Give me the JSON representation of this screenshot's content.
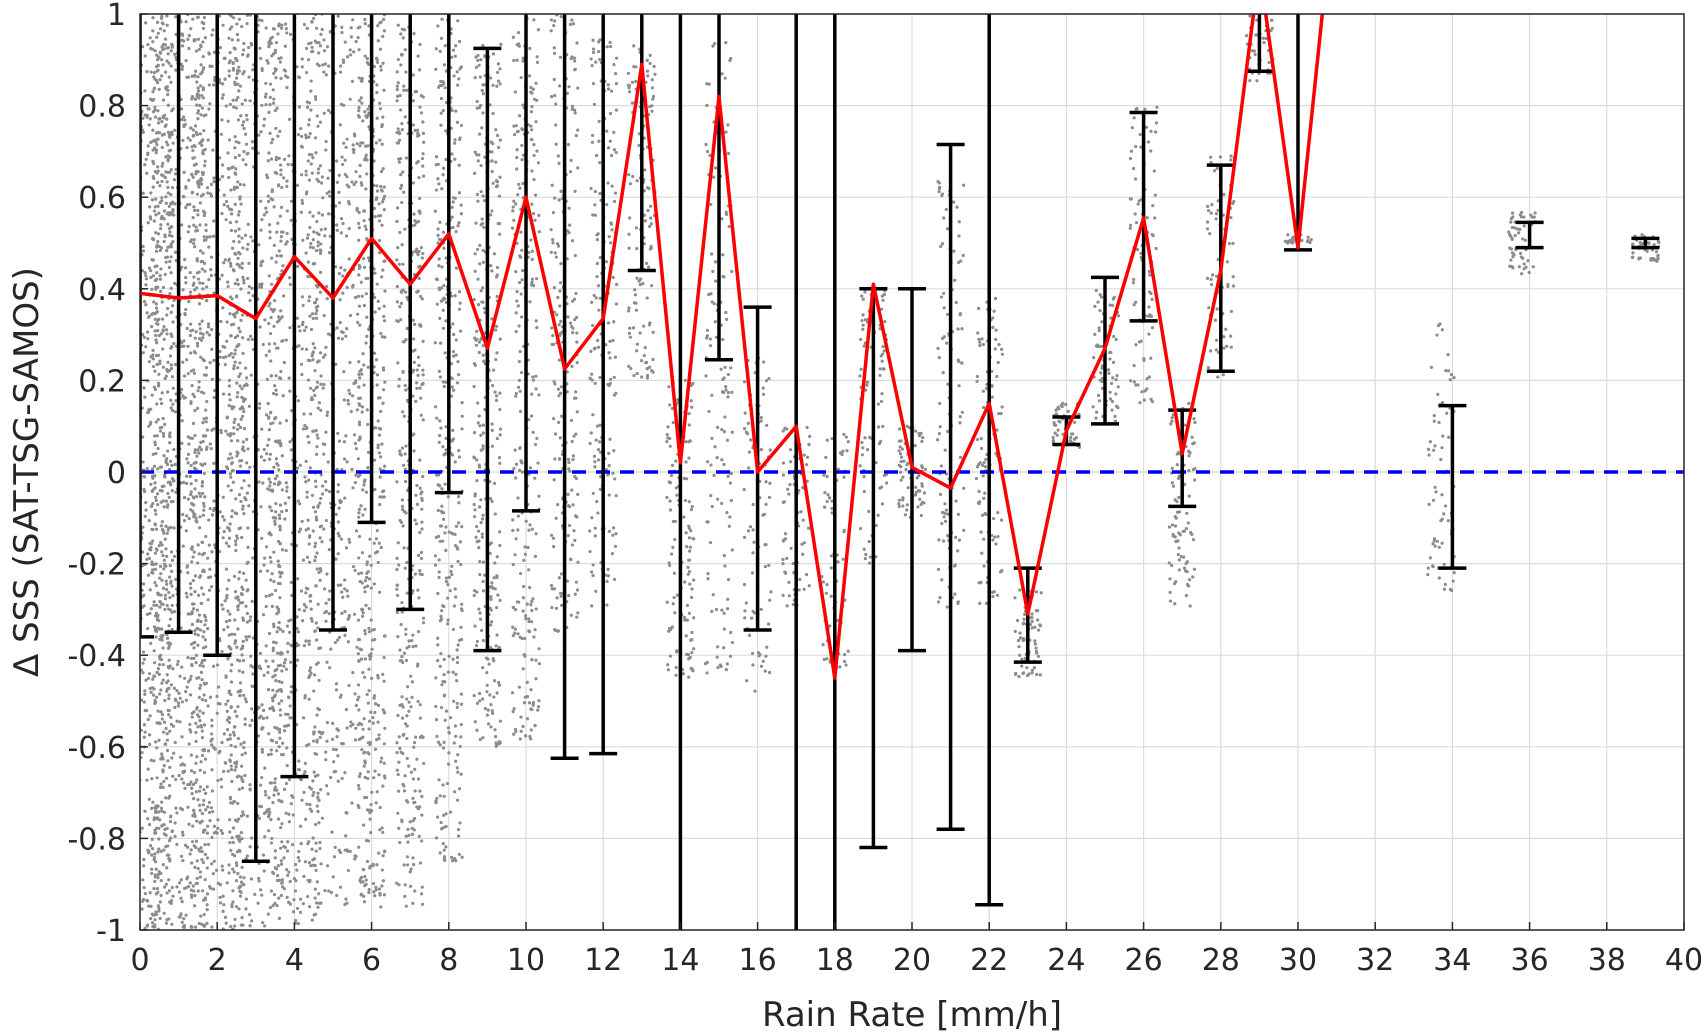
{
  "chart_data": {
    "type": "scatter",
    "title": "",
    "xlabel": "Rain Rate [mm/h]",
    "ylabel": "Δ SSS (SAT-TSG-SAMOS)",
    "xlim": [
      0,
      40
    ],
    "ylim": [
      -1,
      1
    ],
    "xticks": [
      0,
      2,
      4,
      6,
      8,
      10,
      12,
      14,
      16,
      18,
      20,
      22,
      24,
      26,
      28,
      30,
      32,
      34,
      36,
      38,
      40
    ],
    "yticks": [
      -1,
      -0.8,
      -0.6,
      -0.4,
      -0.2,
      0,
      0.2,
      0.4,
      0.6,
      0.8,
      1
    ],
    "ytick_labels": [
      "-1",
      "-0.8",
      "-0.6",
      "-0.4",
      "-0.2",
      "0",
      "0.2",
      "0.4",
      "0.6",
      "0.8",
      "1"
    ],
    "grid": true,
    "colors": {
      "scatter": "#8c8c8c",
      "mean_line": "#ff0000",
      "error_bars": "#000000",
      "zero_line": "#0000ee"
    },
    "series": [
      {
        "kind": "mean-line",
        "x": [
          0,
          1,
          2,
          3,
          4,
          5,
          6,
          7,
          8,
          9,
          10,
          11,
          12,
          13,
          14,
          15,
          16,
          17,
          18,
          19,
          20,
          21,
          22,
          23,
          24,
          25,
          26,
          27,
          28,
          29,
          30,
          31
        ],
        "y": [
          0.39,
          0.38,
          0.385,
          0.335,
          0.47,
          0.38,
          0.51,
          0.41,
          0.52,
          0.27,
          0.6,
          0.225,
          0.335,
          0.89,
          0.02,
          0.82,
          0.0,
          0.1,
          -0.45,
          0.41,
          0.01,
          -0.035,
          0.15,
          -0.31,
          0.09,
          0.27,
          0.555,
          0.04,
          0.44,
          1.1,
          0.49,
          1.3
        ]
      },
      {
        "kind": "error-bars",
        "x": [
          0,
          1,
          2,
          3,
          4,
          5,
          6,
          7,
          8,
          9,
          10,
          11,
          12,
          13,
          14,
          15,
          16,
          17,
          18,
          19,
          20,
          21,
          22,
          23,
          24,
          25,
          26,
          27,
          28,
          29,
          30,
          34,
          36,
          39
        ],
        "lower": [
          -0.36,
          -0.35,
          -0.4,
          -0.85,
          -0.665,
          -0.345,
          -0.11,
          -0.3,
          -0.045,
          -0.39,
          -0.085,
          -0.625,
          -0.615,
          0.44,
          -1.3,
          0.245,
          -0.345,
          -1.3,
          -1.3,
          -0.82,
          -0.39,
          -0.78,
          -0.945,
          -0.415,
          0.06,
          0.105,
          0.33,
          -0.075,
          0.22,
          0.875,
          0.485,
          -0.21,
          0.49,
          0.49
        ],
        "upper": [
          1.3,
          1.3,
          1.3,
          1.3,
          1.3,
          1.3,
          1.3,
          1.3,
          1.3,
          0.925,
          1.3,
          1.3,
          1.3,
          1.3,
          1.3,
          1.3,
          0.36,
          1.3,
          1.3,
          0.4,
          0.4,
          0.715,
          1.3,
          -0.21,
          0.12,
          0.425,
          0.785,
          0.135,
          0.67,
          1.3,
          1.3,
          0.145,
          0.545,
          0.51
        ]
      },
      {
        "kind": "zero-line",
        "y": 0
      }
    ],
    "scatter_columns": [
      {
        "x": 0.15,
        "min": -1.0,
        "max": 1.0,
        "density": 1.0
      },
      {
        "x": 1.0,
        "min": -1.0,
        "max": 1.0,
        "density": 0.9
      },
      {
        "x": 2.0,
        "min": -1.0,
        "max": 1.0,
        "density": 0.8
      },
      {
        "x": 3.0,
        "min": -1.0,
        "max": 1.0,
        "density": 0.7
      },
      {
        "x": 4.0,
        "min": -1.0,
        "max": 1.0,
        "density": 0.6
      },
      {
        "x": 5.0,
        "min": -0.95,
        "max": 1.0,
        "density": 0.55
      },
      {
        "x": 6.0,
        "min": -0.95,
        "max": 1.0,
        "density": 0.5
      },
      {
        "x": 7.0,
        "min": -0.95,
        "max": 1.0,
        "density": 0.45
      },
      {
        "x": 8.0,
        "min": -0.85,
        "max": 1.0,
        "density": 0.4
      },
      {
        "x": 9.0,
        "min": -0.6,
        "max": 0.95,
        "density": 0.35
      },
      {
        "x": 10.0,
        "min": -0.6,
        "max": 1.0,
        "density": 0.3
      },
      {
        "x": 11.0,
        "min": -0.35,
        "max": 1.0,
        "density": 0.25
      },
      {
        "x": 12.0,
        "min": -0.3,
        "max": 0.95,
        "density": 0.2
      },
      {
        "x": 13.0,
        "min": 0.2,
        "max": 0.95,
        "density": 0.15
      },
      {
        "x": 14.0,
        "min": -0.45,
        "max": 0.2,
        "density": 0.15
      },
      {
        "x": 15.0,
        "min": -0.45,
        "max": 0.95,
        "density": 0.15
      },
      {
        "x": 16.0,
        "min": -0.5,
        "max": 0.25,
        "density": 0.1
      },
      {
        "x": 17.0,
        "min": -0.3,
        "max": 0.1,
        "density": 0.08
      },
      {
        "x": 18.0,
        "min": -0.45,
        "max": 0.1,
        "density": 0.08
      },
      {
        "x": 19.0,
        "min": -0.2,
        "max": 0.4,
        "density": 0.1
      },
      {
        "x": 20.0,
        "min": -0.1,
        "max": 0.1,
        "density": 0.08
      },
      {
        "x": 21.0,
        "min": -0.3,
        "max": 0.65,
        "density": 0.12
      },
      {
        "x": 22.0,
        "min": -0.3,
        "max": 0.4,
        "density": 0.12
      },
      {
        "x": 23.0,
        "min": -0.45,
        "max": -0.25,
        "density": 0.08
      },
      {
        "x": 24.0,
        "min": 0.05,
        "max": 0.15,
        "density": 0.06
      },
      {
        "x": 25.0,
        "min": 0.1,
        "max": 0.4,
        "density": 0.08
      },
      {
        "x": 26.0,
        "min": 0.15,
        "max": 0.8,
        "density": 0.1
      },
      {
        "x": 27.0,
        "min": -0.3,
        "max": 0.15,
        "density": 0.1
      },
      {
        "x": 28.0,
        "min": 0.2,
        "max": 0.7,
        "density": 0.08
      },
      {
        "x": 29.0,
        "min": 0.85,
        "max": 1.0,
        "density": 0.05
      },
      {
        "x": 30.0,
        "min": 0.5,
        "max": 0.52,
        "density": 0.03
      },
      {
        "x": 33.7,
        "min": -0.28,
        "max": 0.33,
        "density": 0.08
      },
      {
        "x": 35.8,
        "min": 0.43,
        "max": 0.57,
        "density": 0.06
      },
      {
        "x": 39.0,
        "min": 0.46,
        "max": 0.52,
        "density": 0.05
      }
    ]
  }
}
